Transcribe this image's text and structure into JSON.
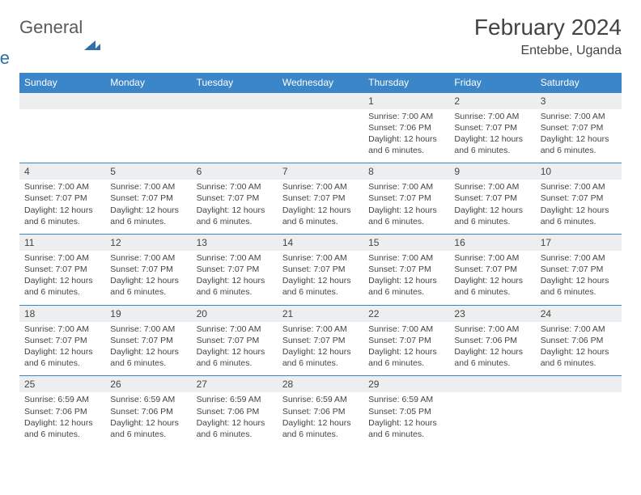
{
  "logo": {
    "part1": "General",
    "part2": "Blue"
  },
  "title": "February 2024",
  "location": "Entebbe, Uganda",
  "weekdays": [
    "Sunday",
    "Monday",
    "Tuesday",
    "Wednesday",
    "Thursday",
    "Friday",
    "Saturday"
  ],
  "colors": {
    "header_bg": "#3a86c8",
    "daynum_bg": "#eceeef",
    "border": "#3a86c8",
    "text": "#444444",
    "logo_gray": "#5a5a5a",
    "logo_blue": "#2f6fab"
  },
  "weeks": [
    [
      {
        "num": "",
        "sunrise": "",
        "sunset": "",
        "daylight": ""
      },
      {
        "num": "",
        "sunrise": "",
        "sunset": "",
        "daylight": ""
      },
      {
        "num": "",
        "sunrise": "",
        "sunset": "",
        "daylight": ""
      },
      {
        "num": "",
        "sunrise": "",
        "sunset": "",
        "daylight": ""
      },
      {
        "num": "1",
        "sunrise": "Sunrise: 7:00 AM",
        "sunset": "Sunset: 7:06 PM",
        "daylight": "Daylight: 12 hours and 6 minutes."
      },
      {
        "num": "2",
        "sunrise": "Sunrise: 7:00 AM",
        "sunset": "Sunset: 7:07 PM",
        "daylight": "Daylight: 12 hours and 6 minutes."
      },
      {
        "num": "3",
        "sunrise": "Sunrise: 7:00 AM",
        "sunset": "Sunset: 7:07 PM",
        "daylight": "Daylight: 12 hours and 6 minutes."
      }
    ],
    [
      {
        "num": "4",
        "sunrise": "Sunrise: 7:00 AM",
        "sunset": "Sunset: 7:07 PM",
        "daylight": "Daylight: 12 hours and 6 minutes."
      },
      {
        "num": "5",
        "sunrise": "Sunrise: 7:00 AM",
        "sunset": "Sunset: 7:07 PM",
        "daylight": "Daylight: 12 hours and 6 minutes."
      },
      {
        "num": "6",
        "sunrise": "Sunrise: 7:00 AM",
        "sunset": "Sunset: 7:07 PM",
        "daylight": "Daylight: 12 hours and 6 minutes."
      },
      {
        "num": "7",
        "sunrise": "Sunrise: 7:00 AM",
        "sunset": "Sunset: 7:07 PM",
        "daylight": "Daylight: 12 hours and 6 minutes."
      },
      {
        "num": "8",
        "sunrise": "Sunrise: 7:00 AM",
        "sunset": "Sunset: 7:07 PM",
        "daylight": "Daylight: 12 hours and 6 minutes."
      },
      {
        "num": "9",
        "sunrise": "Sunrise: 7:00 AM",
        "sunset": "Sunset: 7:07 PM",
        "daylight": "Daylight: 12 hours and 6 minutes."
      },
      {
        "num": "10",
        "sunrise": "Sunrise: 7:00 AM",
        "sunset": "Sunset: 7:07 PM",
        "daylight": "Daylight: 12 hours and 6 minutes."
      }
    ],
    [
      {
        "num": "11",
        "sunrise": "Sunrise: 7:00 AM",
        "sunset": "Sunset: 7:07 PM",
        "daylight": "Daylight: 12 hours and 6 minutes."
      },
      {
        "num": "12",
        "sunrise": "Sunrise: 7:00 AM",
        "sunset": "Sunset: 7:07 PM",
        "daylight": "Daylight: 12 hours and 6 minutes."
      },
      {
        "num": "13",
        "sunrise": "Sunrise: 7:00 AM",
        "sunset": "Sunset: 7:07 PM",
        "daylight": "Daylight: 12 hours and 6 minutes."
      },
      {
        "num": "14",
        "sunrise": "Sunrise: 7:00 AM",
        "sunset": "Sunset: 7:07 PM",
        "daylight": "Daylight: 12 hours and 6 minutes."
      },
      {
        "num": "15",
        "sunrise": "Sunrise: 7:00 AM",
        "sunset": "Sunset: 7:07 PM",
        "daylight": "Daylight: 12 hours and 6 minutes."
      },
      {
        "num": "16",
        "sunrise": "Sunrise: 7:00 AM",
        "sunset": "Sunset: 7:07 PM",
        "daylight": "Daylight: 12 hours and 6 minutes."
      },
      {
        "num": "17",
        "sunrise": "Sunrise: 7:00 AM",
        "sunset": "Sunset: 7:07 PM",
        "daylight": "Daylight: 12 hours and 6 minutes."
      }
    ],
    [
      {
        "num": "18",
        "sunrise": "Sunrise: 7:00 AM",
        "sunset": "Sunset: 7:07 PM",
        "daylight": "Daylight: 12 hours and 6 minutes."
      },
      {
        "num": "19",
        "sunrise": "Sunrise: 7:00 AM",
        "sunset": "Sunset: 7:07 PM",
        "daylight": "Daylight: 12 hours and 6 minutes."
      },
      {
        "num": "20",
        "sunrise": "Sunrise: 7:00 AM",
        "sunset": "Sunset: 7:07 PM",
        "daylight": "Daylight: 12 hours and 6 minutes."
      },
      {
        "num": "21",
        "sunrise": "Sunrise: 7:00 AM",
        "sunset": "Sunset: 7:07 PM",
        "daylight": "Daylight: 12 hours and 6 minutes."
      },
      {
        "num": "22",
        "sunrise": "Sunrise: 7:00 AM",
        "sunset": "Sunset: 7:07 PM",
        "daylight": "Daylight: 12 hours and 6 minutes."
      },
      {
        "num": "23",
        "sunrise": "Sunrise: 7:00 AM",
        "sunset": "Sunset: 7:06 PM",
        "daylight": "Daylight: 12 hours and 6 minutes."
      },
      {
        "num": "24",
        "sunrise": "Sunrise: 7:00 AM",
        "sunset": "Sunset: 7:06 PM",
        "daylight": "Daylight: 12 hours and 6 minutes."
      }
    ],
    [
      {
        "num": "25",
        "sunrise": "Sunrise: 6:59 AM",
        "sunset": "Sunset: 7:06 PM",
        "daylight": "Daylight: 12 hours and 6 minutes."
      },
      {
        "num": "26",
        "sunrise": "Sunrise: 6:59 AM",
        "sunset": "Sunset: 7:06 PM",
        "daylight": "Daylight: 12 hours and 6 minutes."
      },
      {
        "num": "27",
        "sunrise": "Sunrise: 6:59 AM",
        "sunset": "Sunset: 7:06 PM",
        "daylight": "Daylight: 12 hours and 6 minutes."
      },
      {
        "num": "28",
        "sunrise": "Sunrise: 6:59 AM",
        "sunset": "Sunset: 7:06 PM",
        "daylight": "Daylight: 12 hours and 6 minutes."
      },
      {
        "num": "29",
        "sunrise": "Sunrise: 6:59 AM",
        "sunset": "Sunset: 7:05 PM",
        "daylight": "Daylight: 12 hours and 6 minutes."
      },
      {
        "num": "",
        "sunrise": "",
        "sunset": "",
        "daylight": ""
      },
      {
        "num": "",
        "sunrise": "",
        "sunset": "",
        "daylight": ""
      }
    ]
  ]
}
